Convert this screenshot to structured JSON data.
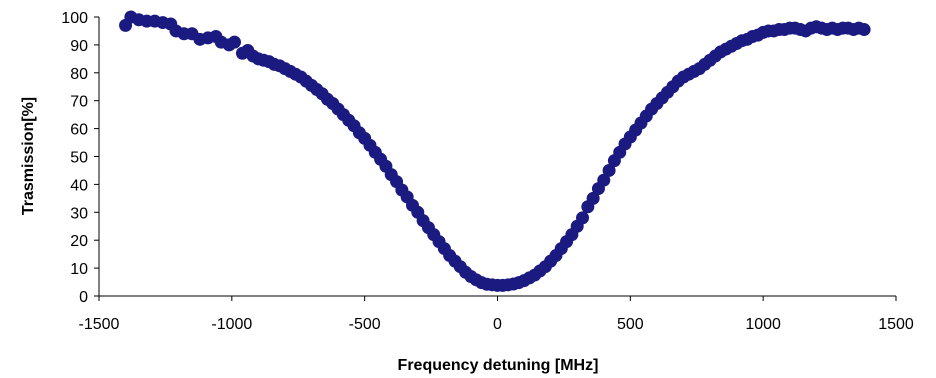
{
  "chart_data": {
    "type": "scatter",
    "title": "",
    "xlabel": "Frequency detuning [MHz]",
    "ylabel": "Trasmission[%]",
    "xlim": [
      -1500,
      1500
    ],
    "ylim": [
      0,
      100
    ],
    "xticks": [
      -1500,
      -1000,
      -500,
      0,
      500,
      1000,
      1500
    ],
    "yticks": [
      0,
      10,
      20,
      30,
      40,
      50,
      60,
      70,
      80,
      90,
      100
    ],
    "grid": false,
    "legend": "none",
    "marker_color": "#1a1a80",
    "series": [
      {
        "points": [
          [
            -1400,
            97
          ],
          [
            -1380,
            100
          ],
          [
            -1350,
            99
          ],
          [
            -1320,
            98.5
          ],
          [
            -1290,
            98.5
          ],
          [
            -1260,
            98
          ],
          [
            -1230,
            97.5
          ],
          [
            -1210,
            95
          ],
          [
            -1180,
            94
          ],
          [
            -1150,
            94
          ],
          [
            -1120,
            92
          ],
          [
            -1090,
            92.5
          ],
          [
            -1060,
            93
          ],
          [
            -1040,
            91
          ],
          [
            -1010,
            90
          ],
          [
            -990,
            91
          ],
          [
            -960,
            87
          ],
          [
            -940,
            88
          ],
          [
            -920,
            86
          ],
          [
            -900,
            85
          ],
          [
            -880,
            84.5
          ],
          [
            -860,
            84
          ],
          [
            -840,
            83
          ],
          [
            -820,
            82.5
          ],
          [
            -800,
            81.5
          ],
          [
            -780,
            80.5
          ],
          [
            -760,
            79.5
          ],
          [
            -740,
            78.5
          ],
          [
            -720,
            77
          ],
          [
            -700,
            75.5
          ],
          [
            -680,
            74
          ],
          [
            -660,
            72.5
          ],
          [
            -640,
            70.5
          ],
          [
            -620,
            69
          ],
          [
            -600,
            67
          ],
          [
            -580,
            65
          ],
          [
            -560,
            63
          ],
          [
            -540,
            61
          ],
          [
            -520,
            58.5
          ],
          [
            -500,
            56.5
          ],
          [
            -480,
            54
          ],
          [
            -460,
            51.5
          ],
          [
            -440,
            49
          ],
          [
            -420,
            46.5
          ],
          [
            -400,
            43.5
          ],
          [
            -380,
            41
          ],
          [
            -360,
            38
          ],
          [
            -340,
            35.5
          ],
          [
            -320,
            32.5
          ],
          [
            -300,
            30
          ],
          [
            -280,
            27
          ],
          [
            -260,
            24.5
          ],
          [
            -240,
            22
          ],
          [
            -220,
            19.5
          ],
          [
            -200,
            17
          ],
          [
            -180,
            14.5
          ],
          [
            -160,
            12.5
          ],
          [
            -140,
            10.5
          ],
          [
            -120,
            8.5
          ],
          [
            -100,
            7
          ],
          [
            -80,
            5.8
          ],
          [
            -60,
            4.8
          ],
          [
            -40,
            4.2
          ],
          [
            -20,
            4
          ],
          [
            0,
            3.8
          ],
          [
            20,
            3.8
          ],
          [
            40,
            4
          ],
          [
            60,
            4.3
          ],
          [
            80,
            4.8
          ],
          [
            100,
            5.5
          ],
          [
            120,
            6.5
          ],
          [
            140,
            7.5
          ],
          [
            160,
            9
          ],
          [
            180,
            10.5
          ],
          [
            200,
            12.5
          ],
          [
            220,
            14.5
          ],
          [
            240,
            17
          ],
          [
            260,
            19.5
          ],
          [
            280,
            22
          ],
          [
            300,
            25
          ],
          [
            320,
            28
          ],
          [
            340,
            32
          ],
          [
            360,
            35
          ],
          [
            380,
            38.5
          ],
          [
            400,
            41.5
          ],
          [
            420,
            45
          ],
          [
            440,
            48.5
          ],
          [
            460,
            51.5
          ],
          [
            480,
            54.5
          ],
          [
            500,
            57
          ],
          [
            520,
            59.5
          ],
          [
            540,
            62
          ],
          [
            560,
            64.5
          ],
          [
            580,
            67
          ],
          [
            600,
            69
          ],
          [
            620,
            71
          ],
          [
            640,
            73
          ],
          [
            660,
            75
          ],
          [
            680,
            77
          ],
          [
            700,
            78.5
          ],
          [
            720,
            79.5
          ],
          [
            740,
            80.5
          ],
          [
            760,
            81.5
          ],
          [
            780,
            83
          ],
          [
            800,
            84.5
          ],
          [
            820,
            86
          ],
          [
            840,
            87.5
          ],
          [
            860,
            88.5
          ],
          [
            880,
            89.5
          ],
          [
            900,
            90.5
          ],
          [
            920,
            91.5
          ],
          [
            940,
            92
          ],
          [
            960,
            93
          ],
          [
            980,
            93.5
          ],
          [
            1000,
            94.5
          ],
          [
            1020,
            95
          ],
          [
            1040,
            95
          ],
          [
            1060,
            95.5
          ],
          [
            1080,
            95.5
          ],
          [
            1100,
            96
          ],
          [
            1120,
            96
          ],
          [
            1140,
            95.5
          ],
          [
            1160,
            95
          ],
          [
            1180,
            96
          ],
          [
            1200,
            96.5
          ],
          [
            1220,
            96
          ],
          [
            1240,
            95.5
          ],
          [
            1260,
            96
          ],
          [
            1280,
            95.5
          ],
          [
            1300,
            96
          ],
          [
            1320,
            96
          ],
          [
            1340,
            95.5
          ],
          [
            1360,
            96
          ],
          [
            1380,
            95.5
          ]
        ]
      }
    ]
  }
}
